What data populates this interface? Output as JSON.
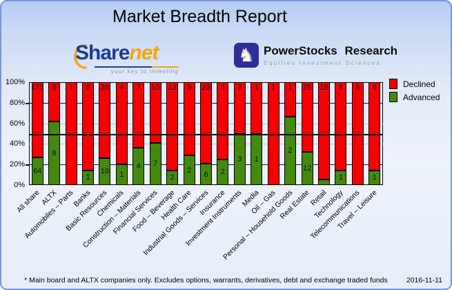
{
  "title": "Market Breadth Report",
  "logos": {
    "sharenet": {
      "text_primary": "Share",
      "text_secondary": "net",
      "tagline": "your key to investing",
      "color_primary": "#1d3c8f",
      "color_secondary": "#f3a50a"
    },
    "powerstocks": {
      "name": "PowerStocks  Research",
      "subtitle": "Equities Investment Sciences",
      "icon": "knight-icon",
      "icon_color": "#2e2e99"
    }
  },
  "legend": [
    {
      "label": "Declined",
      "color": "#f90000"
    },
    {
      "label": "Advanced",
      "color": "#438a0e"
    }
  ],
  "chart_data": {
    "type": "bar",
    "stacked": true,
    "normalized": "percent",
    "title": "",
    "xlabel": "",
    "ylabel": "",
    "ylim": [
      0,
      100
    ],
    "y_ticks": [
      "0%",
      "20%",
      "40%",
      "60%",
      "80%",
      "100%"
    ],
    "x_tick_rotation": 45,
    "legend_position": "right",
    "categories": [
      "All share",
      "ALTX",
      "Automobiles – Parts",
      "Banks",
      "Basic Resources",
      "Chemicals",
      "Construction – Materials",
      "Financial Services",
      "Food – Beverage",
      "Health Care",
      "Industrial Goods – Services",
      "Insurance",
      "Investment Instruments",
      "Media",
      "Oil – Gas",
      "Personal – Household Goods",
      "Real Estate",
      "Retail",
      "Technology",
      "Telecommunications",
      "Travel – Leisure"
    ],
    "series": [
      {
        "name": "Declined",
        "color": "#f90000",
        "values": [
          173,
          5,
          1,
          6,
          28,
          4,
          7,
          10,
          12,
          5,
          23,
          6,
          3,
          1,
          1,
          1,
          25,
          18,
          6,
          5,
          6
        ]
      },
      {
        "name": "Advanced",
        "color": "#438a0e",
        "values": [
          64,
          8,
          0,
          1,
          10,
          1,
          4,
          7,
          2,
          2,
          6,
          2,
          3,
          1,
          0,
          2,
          12,
          1,
          1,
          0,
          1
        ]
      }
    ],
    "gridlines": {
      "navy_pcts": [
        20,
        80
      ],
      "gray_pcts": [
        40,
        60
      ],
      "black_pcts": [
        50
      ],
      "navy_color": "#000080",
      "gray_color": "#c4c4ce",
      "black_color": "#000000"
    }
  },
  "footer": {
    "note": "* Main board and ALTX companies only. Excludes options, warrants, derivatives, debt and exchange traded funds",
    "date": "2016-11-11"
  }
}
